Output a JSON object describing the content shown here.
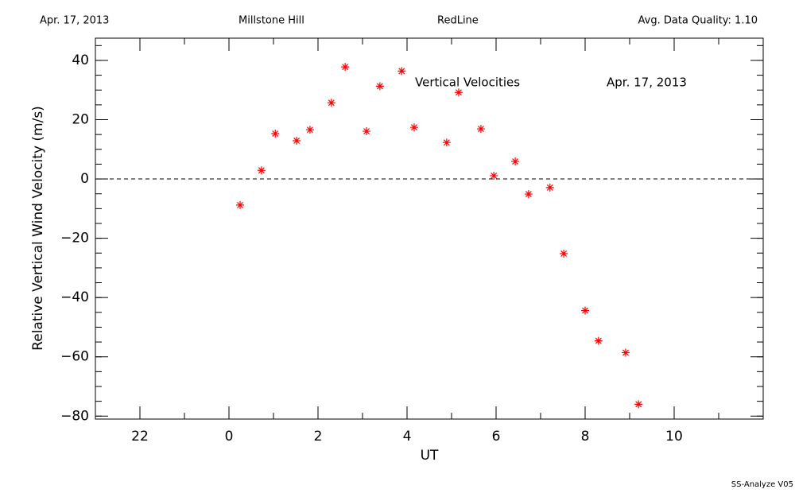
{
  "chart_data": {
    "type": "scatter",
    "header": [
      "Apr. 17, 2013",
      "Millstone Hill",
      "RedLine",
      "Avg. Data Quality: 1.10"
    ],
    "annotations": [
      "Vertical Velocities",
      "Apr. 17, 2013"
    ],
    "footer": "SS-Analyze V05",
    "x_label": "UT",
    "y_label": "Relative Vertical Wind Velocity (m/s)",
    "color": "#ff0000",
    "marker": "asterisk",
    "hline": 0,
    "xlim": [
      -3,
      12
    ],
    "xticks": [
      {
        "value": -2,
        "label": "22"
      },
      0,
      2,
      4,
      6,
      8,
      10
    ],
    "ylim": [
      -81,
      47.5
    ],
    "yticks": [
      {
        "value": -80,
        "label": "−80"
      },
      {
        "value": -60,
        "label": "−60"
      },
      {
        "value": -40,
        "label": "−40"
      },
      {
        "value": -20,
        "label": "−20"
      },
      0,
      20,
      40
    ],
    "x": [
      0.25,
      0.73,
      1.04,
      1.52,
      1.82,
      2.3,
      2.61,
      3.09,
      3.39,
      3.88,
      4.16,
      4.89,
      5.16,
      5.66,
      5.95,
      6.43,
      6.73,
      7.21,
      7.52,
      8.0,
      8.3,
      8.91,
      9.2
    ],
    "values": [
      -8.8,
      2.9,
      15.3,
      12.9,
      16.6,
      25.7,
      37.8,
      16.1,
      31.3,
      36.4,
      17.4,
      12.3,
      29.2,
      16.9,
      1.1,
      5.9,
      -5.1,
      -2.9,
      -25.2,
      -44.4,
      -54.6,
      -58.6,
      -76.0
    ]
  }
}
